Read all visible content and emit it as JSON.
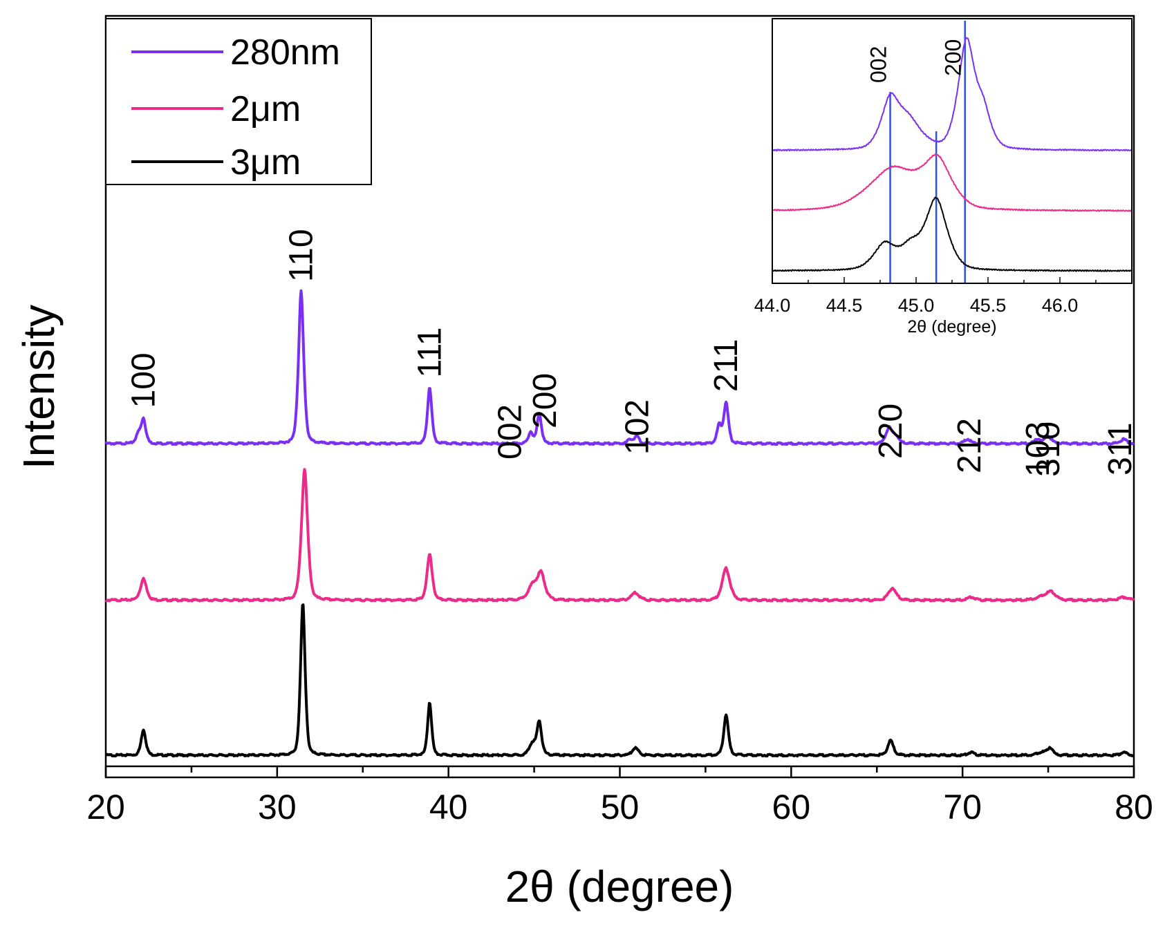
{
  "chart_data": [
    {
      "type": "line",
      "title": "",
      "xlabel": "2θ (degree)",
      "ylabel": "Intensity",
      "xlim": [
        20,
        80
      ],
      "xticks": [
        20,
        30,
        40,
        50,
        60,
        70,
        80
      ],
      "y_axis_numbered": false,
      "legend": {
        "location": "top-left",
        "entries": [
          "280nm",
          "2μm",
          "3μm"
        ]
      },
      "series": [
        {
          "name": "280nm",
          "color": "#7B2FF2",
          "baseline": 2.05,
          "peaks": [
            {
              "x": 21.9,
              "height": 0.06,
              "width": 0.16
            },
            {
              "x": 22.2,
              "height": 0.16,
              "width": 0.15
            },
            {
              "x": 31.4,
              "height": 1.0,
              "width": 0.17
            },
            {
              "x": 38.9,
              "height": 0.37,
              "width": 0.14
            },
            {
              "x": 44.8,
              "height": 0.08,
              "width": 0.14
            },
            {
              "x": 45.3,
              "height": 0.2,
              "width": 0.14
            },
            {
              "x": 50.6,
              "height": 0.03,
              "width": 0.15
            },
            {
              "x": 51.0,
              "height": 0.05,
              "width": 0.15
            },
            {
              "x": 55.8,
              "height": 0.12,
              "width": 0.15
            },
            {
              "x": 56.2,
              "height": 0.27,
              "width": 0.15
            },
            {
              "x": 65.7,
              "height": 0.1,
              "width": 0.2
            },
            {
              "x": 66.1,
              "height": 0.05,
              "width": 0.2
            },
            {
              "x": 70.3,
              "height": 0.03,
              "width": 0.2
            },
            {
              "x": 74.4,
              "height": 0.03,
              "width": 0.2
            },
            {
              "x": 75.0,
              "height": 0.05,
              "width": 0.2
            },
            {
              "x": 79.4,
              "height": 0.03,
              "width": 0.2
            }
          ]
        },
        {
          "name": "2μm",
          "color": "#EC2A8A",
          "baseline": 1.02,
          "peaks": [
            {
              "x": 22.2,
              "height": 0.14,
              "width": 0.2
            },
            {
              "x": 31.6,
              "height": 0.86,
              "width": 0.2
            },
            {
              "x": 38.9,
              "height": 0.3,
              "width": 0.17
            },
            {
              "x": 44.9,
              "height": 0.09,
              "width": 0.3
            },
            {
              "x": 45.4,
              "height": 0.17,
              "width": 0.25
            },
            {
              "x": 50.9,
              "height": 0.05,
              "width": 0.25
            },
            {
              "x": 56.2,
              "height": 0.21,
              "width": 0.25
            },
            {
              "x": 65.9,
              "height": 0.08,
              "width": 0.25
            },
            {
              "x": 70.5,
              "height": 0.02,
              "width": 0.25
            },
            {
              "x": 74.8,
              "height": 0.03,
              "width": 0.45
            },
            {
              "x": 75.2,
              "height": 0.04,
              "width": 0.25
            },
            {
              "x": 79.4,
              "height": 0.02,
              "width": 0.3
            }
          ]
        },
        {
          "name": "3μm",
          "color": "#000000",
          "baseline": 0.0,
          "peaks": [
            {
              "x": 22.2,
              "height": 0.17,
              "width": 0.15
            },
            {
              "x": 31.5,
              "height": 1.0,
              "width": 0.15
            },
            {
              "x": 38.9,
              "height": 0.35,
              "width": 0.13
            },
            {
              "x": 44.9,
              "height": 0.08,
              "width": 0.2
            },
            {
              "x": 45.3,
              "height": 0.22,
              "width": 0.15
            },
            {
              "x": 50.9,
              "height": 0.05,
              "width": 0.2
            },
            {
              "x": 56.2,
              "height": 0.27,
              "width": 0.15
            },
            {
              "x": 65.8,
              "height": 0.1,
              "width": 0.18
            },
            {
              "x": 70.5,
              "height": 0.02,
              "width": 0.2
            },
            {
              "x": 74.6,
              "height": 0.02,
              "width": 0.25
            },
            {
              "x": 75.1,
              "height": 0.05,
              "width": 0.18
            },
            {
              "x": 79.4,
              "height": 0.02,
              "width": 0.2
            }
          ]
        }
      ],
      "peak_labels": [
        {
          "text": "100",
          "x": 22.2
        },
        {
          "text": "110",
          "x": 31.4
        },
        {
          "text": "111",
          "x": 38.9
        },
        {
          "text": "002",
          "x": 44.8
        },
        {
          "text": "200",
          "x": 45.3
        },
        {
          "text": "102",
          "x": 51.0
        },
        {
          "text": "211",
          "x": 56.2
        },
        {
          "text": "220",
          "x": 65.8
        },
        {
          "text": "212",
          "x": 70.4
        },
        {
          "text": "103",
          "x": 74.4
        },
        {
          "text": "310",
          "x": 75.0
        },
        {
          "text": "311",
          "x": 79.2
        }
      ]
    },
    {
      "type": "line",
      "title": "",
      "xlabel": "2θ (degree)",
      "ylabel": "",
      "xlim": [
        44.0,
        46.5
      ],
      "xticks": [
        "44.0",
        "44.5",
        "45.0",
        "45.5",
        "46.0"
      ],
      "reference_lines": [
        {
          "x": 44.82,
          "color": "#3050E0"
        },
        {
          "x": 45.14,
          "color": "#3050E0"
        },
        {
          "x": 45.34,
          "color": "#3050E0"
        }
      ],
      "peak_labels": [
        {
          "text": "002",
          "x": 44.82
        },
        {
          "text": "200",
          "x": 45.34
        }
      ],
      "series": [
        {
          "name": "280nm",
          "color": "#7B2FF2",
          "baseline": 2.05,
          "peaks": [
            {
              "x": 44.82,
              "height": 0.78,
              "width": 0.07
            },
            {
              "x": 44.95,
              "height": 0.48,
              "width": 0.1
            },
            {
              "x": 45.35,
              "height": 1.82,
              "width": 0.065
            },
            {
              "x": 45.47,
              "height": 0.58,
              "width": 0.06
            }
          ]
        },
        {
          "name": "2μm",
          "color": "#EC2A8A",
          "baseline": 1.02,
          "peaks": [
            {
              "x": 44.84,
              "height": 0.72,
              "width": 0.19
            },
            {
              "x": 45.15,
              "height": 0.78,
              "width": 0.11
            }
          ]
        },
        {
          "name": "3μm",
          "color": "#000000",
          "baseline": 0.0,
          "peaks": [
            {
              "x": 44.78,
              "height": 0.44,
              "width": 0.085
            },
            {
              "x": 44.96,
              "height": 0.36,
              "width": 0.08
            },
            {
              "x": 45.14,
              "height": 1.2,
              "width": 0.085
            }
          ]
        }
      ]
    }
  ]
}
